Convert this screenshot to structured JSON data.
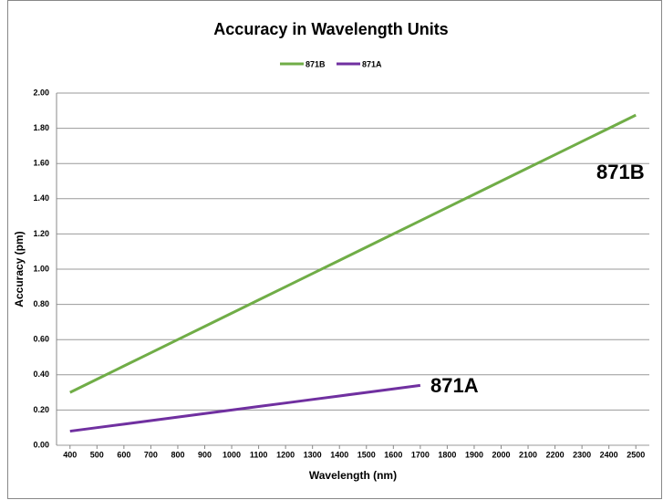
{
  "chart_data": {
    "type": "line",
    "title": "Accuracy in Wavelength Units",
    "x_label": "Wavelength (nm)",
    "y_label": "Accuracy (pm)",
    "x": [
      400,
      500,
      600,
      700,
      800,
      900,
      1000,
      1100,
      1200,
      1300,
      1400,
      1500,
      1600,
      1700,
      1800,
      1900,
      2000,
      2100,
      2200,
      2300,
      2400,
      2500
    ],
    "series": [
      {
        "name": "871B",
        "color": "#70ad47",
        "values": [
          0.3,
          0.375,
          0.45,
          0.525,
          0.6,
          0.675,
          0.75,
          0.825,
          0.9,
          0.975,
          1.05,
          1.125,
          1.2,
          1.275,
          1.35,
          1.425,
          1.5,
          1.575,
          1.65,
          1.725,
          1.8,
          1.875
        ]
      },
      {
        "name": "871A",
        "color": "#7030a0",
        "values": [
          0.08,
          0.1,
          0.12,
          0.14,
          0.16,
          0.18,
          0.2,
          0.22,
          0.24,
          0.26,
          0.28,
          0.3,
          0.32,
          0.34,
          null,
          null,
          null,
          null,
          null,
          null,
          null,
          null
        ]
      }
    ],
    "annotations": [
      {
        "text": "871B"
      },
      {
        "text": "871A"
      }
    ],
    "xlim": [
      350,
      2550
    ],
    "xticks": [
      400,
      500,
      600,
      700,
      800,
      900,
      1000,
      1100,
      1200,
      1300,
      1400,
      1500,
      1600,
      1700,
      1800,
      1900,
      2000,
      2100,
      2200,
      2300,
      2400,
      2500
    ],
    "ylim": [
      0,
      2
    ],
    "yticks": [
      {
        "value": 0,
        "label": "0.00"
      },
      {
        "value": 0.2,
        "label": "0.20"
      },
      {
        "value": 0.4,
        "label": "0.40"
      },
      {
        "value": 0.6,
        "label": "0.60"
      },
      {
        "value": 0.8,
        "label": "0.80"
      },
      {
        "value": 1,
        "label": "1.00"
      },
      {
        "value": 1.2,
        "label": "1.20"
      },
      {
        "value": 1.4,
        "label": "1.40"
      },
      {
        "value": 1.6,
        "label": "1.60"
      },
      {
        "value": 1.8,
        "label": "1.80"
      },
      {
        "value": 2,
        "label": "2.00"
      }
    ],
    "grid": true,
    "legend": "top"
  }
}
